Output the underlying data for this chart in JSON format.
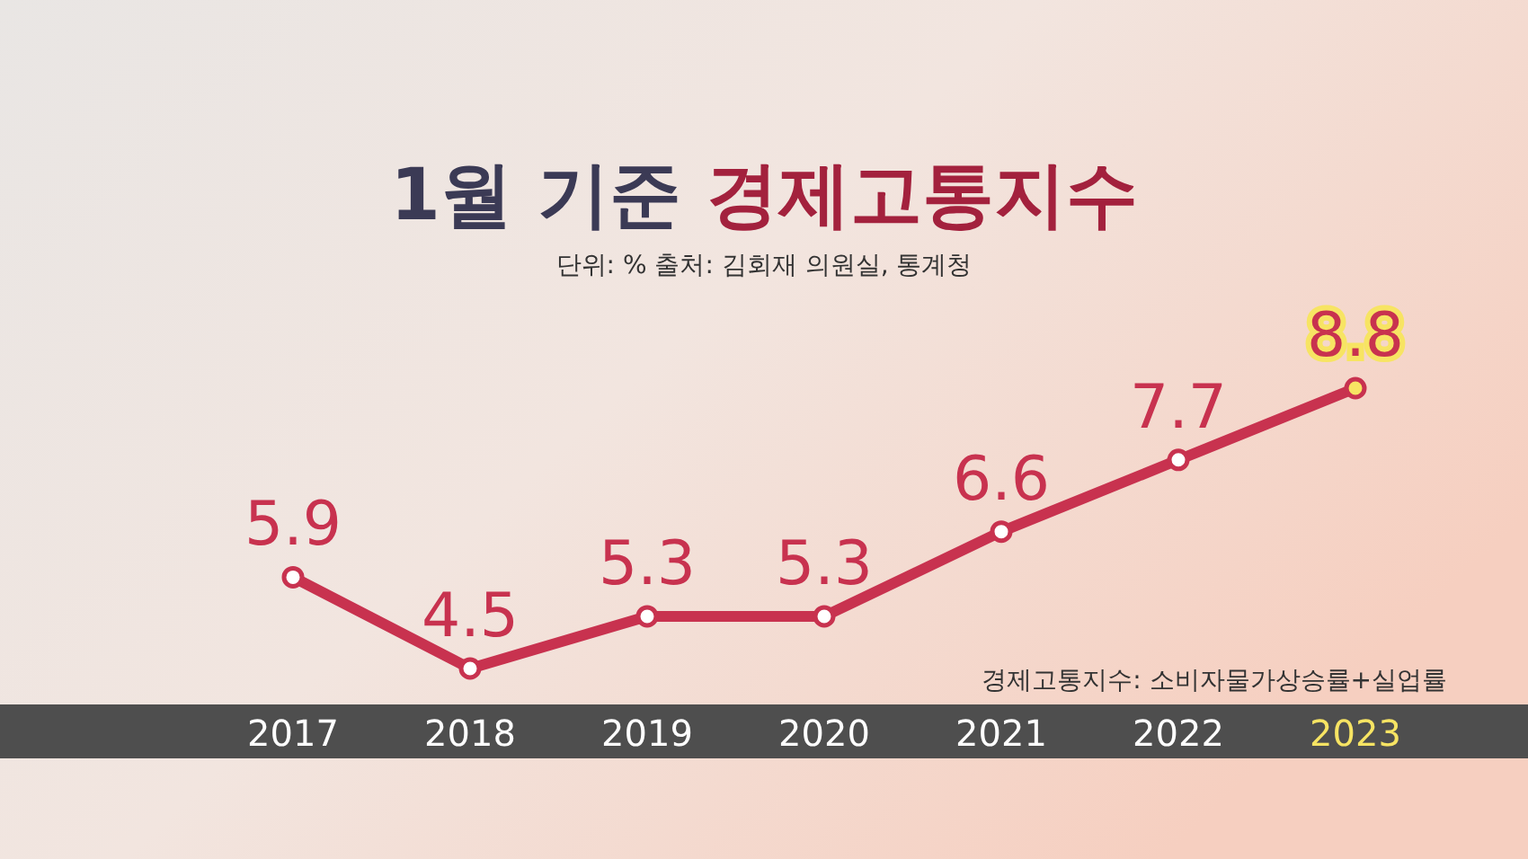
{
  "chart_data": {
    "type": "line",
    "title": "1월 기준 경제고통지수",
    "subtitle": "단위: % 출처: 김회재 의원실, 통계청",
    "annotations": [
      "경제고통지수: 소비자물가상승률+실업률"
    ],
    "categories": [
      "2017",
      "2018",
      "2019",
      "2020",
      "2021",
      "2022",
      "2023"
    ],
    "series": [
      {
        "color": "#c8324f",
        "values": [
          5.9,
          4.5,
          5.3,
          5.3,
          6.6,
          7.7,
          8.8
        ]
      }
    ],
    "data_labels": true,
    "marker": "circle"
  }
}
